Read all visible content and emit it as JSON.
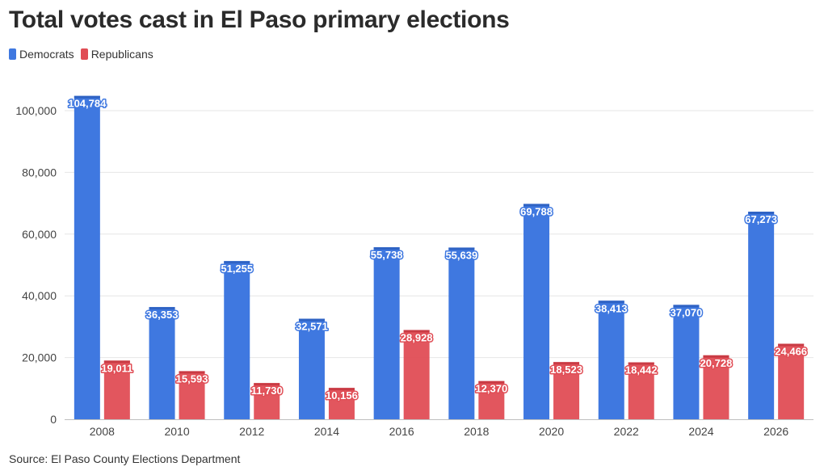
{
  "title": "Total votes cast in El Paso primary elections",
  "source": "Source: El Paso County Elections Department",
  "colors": {
    "democrats": "#3f78e0",
    "republicans": "#e04d55"
  },
  "chart_data": {
    "type": "bar",
    "title": "Total votes cast in El Paso primary elections",
    "xlabel": "",
    "ylabel": "",
    "categories": [
      "2008",
      "2010",
      "2012",
      "2014",
      "2016",
      "2018",
      "2020",
      "2022",
      "2024",
      "2026"
    ],
    "series": [
      {
        "name": "Democrats",
        "color": "#3f78e0",
        "values": [
          104784,
          36353,
          51255,
          32571,
          55738,
          55639,
          69788,
          38413,
          37070,
          67273
        ],
        "labels": [
          "104,784",
          "36,353",
          "51,255",
          "32,571",
          "55,738",
          "55,639",
          "69,788",
          "38,413",
          "37,070",
          "67,273"
        ]
      },
      {
        "name": "Republicans",
        "color": "#e04d55",
        "values": [
          19011,
          15593,
          11730,
          10156,
          28928,
          12370,
          18523,
          18442,
          20728,
          24466
        ],
        "labels": [
          "19,011",
          "15,593",
          "11,730",
          "10,156",
          "28,928",
          "12,370",
          "18,523",
          "18,442",
          "20,728",
          "24,466"
        ]
      }
    ],
    "ylim": [
      0,
      110000
    ],
    "yticks": [
      0,
      20000,
      40000,
      60000,
      80000,
      100000
    ],
    "ytick_labels": [
      "0",
      "20,000",
      "40,000",
      "60,000",
      "80,000",
      "100,000"
    ],
    "grid": true,
    "legend": "top-left"
  }
}
